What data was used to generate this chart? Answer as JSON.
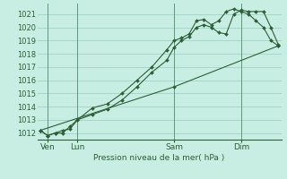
{
  "background_color": "#c8eee4",
  "grid_color": "#a0d4c4",
  "line_color": "#2d5e35",
  "vline_color": "#5a9a7a",
  "ylabel_text": "Pression niveau de la mer( hPa )",
  "ylim": [
    1011.5,
    1021.8
  ],
  "yticks": [
    1012,
    1013,
    1014,
    1015,
    1016,
    1017,
    1018,
    1019,
    1020,
    1021
  ],
  "xlim": [
    -0.2,
    16.2
  ],
  "xtick_labels": [
    "Ven",
    "Lun",
    "Sam",
    "Dim"
  ],
  "xtick_positions": [
    0.5,
    2.5,
    9.0,
    13.5
  ],
  "vline_positions": [
    0.5,
    2.5,
    9.0,
    13.5
  ],
  "series1_x": [
    0.0,
    0.5,
    1.0,
    1.5,
    2.0,
    2.5,
    3.5,
    4.5,
    5.5,
    6.5,
    7.5,
    8.5,
    9.0,
    9.5,
    10.0,
    10.5,
    11.0,
    11.5,
    12.0,
    12.5,
    13.0,
    13.5,
    14.0,
    14.5,
    15.0,
    15.5,
    16.0
  ],
  "series1_y": [
    1012.2,
    1011.8,
    1012.0,
    1012.2,
    1012.3,
    1013.0,
    1013.9,
    1014.2,
    1015.0,
    1016.0,
    1017.0,
    1018.3,
    1019.0,
    1019.2,
    1019.5,
    1020.5,
    1020.6,
    1020.2,
    1020.5,
    1021.2,
    1021.4,
    1021.2,
    1021.0,
    1020.5,
    1020.0,
    1019.0,
    1018.6
  ],
  "series2_x": [
    0.0,
    0.5,
    1.0,
    1.5,
    2.0,
    2.5,
    3.5,
    4.5,
    5.5,
    6.5,
    7.5,
    8.5,
    9.0,
    9.5,
    10.0,
    10.5,
    11.0,
    11.5,
    12.0,
    12.5,
    13.0,
    13.5,
    14.0,
    14.5,
    15.0,
    15.5,
    16.0
  ],
  "series2_y": [
    1012.2,
    1011.8,
    1012.0,
    1012.0,
    1012.5,
    1013.0,
    1013.4,
    1013.8,
    1014.5,
    1015.5,
    1016.6,
    1017.5,
    1018.5,
    1019.0,
    1019.3,
    1020.0,
    1020.2,
    1020.0,
    1019.6,
    1019.5,
    1021.0,
    1021.3,
    1021.2,
    1021.2,
    1021.2,
    1020.0,
    1018.7
  ],
  "series3_x": [
    0.0,
    9.0,
    16.0
  ],
  "series3_y": [
    1012.2,
    1015.5,
    1018.6
  ]
}
